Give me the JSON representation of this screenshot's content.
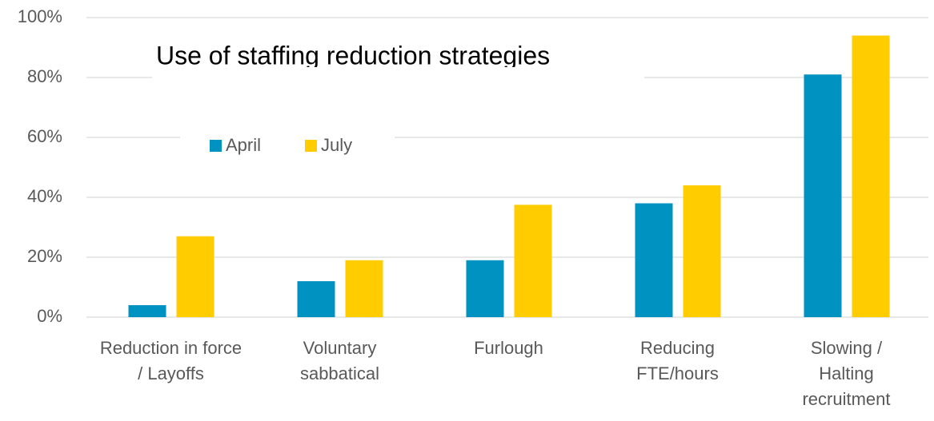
{
  "chart_data": {
    "type": "bar",
    "title": "Use of staffing reduction strategies",
    "categories": [
      "Reduction in force / Layoffs",
      "Voluntary sabbatical",
      "Furlough",
      "Reducing FTE/hours",
      "Slowing / Halting recruitment"
    ],
    "series": [
      {
        "name": "April",
        "color": "#0092c0",
        "values": [
          4,
          12,
          19,
          38,
          81
        ]
      },
      {
        "name": "July",
        "color": "#ffcc00",
        "values": [
          27,
          19,
          37.5,
          44,
          94
        ]
      }
    ],
    "ylim": [
      0,
      100
    ],
    "yticks": [
      {
        "value": 0,
        "label": "0%"
      },
      {
        "value": 20,
        "label": "20%"
      },
      {
        "value": 40,
        "label": "40%"
      },
      {
        "value": 60,
        "label": "60%"
      },
      {
        "value": 80,
        "label": "80%"
      },
      {
        "value": 100,
        "label": "100%"
      }
    ],
    "grid": true,
    "legend": "upper left"
  }
}
